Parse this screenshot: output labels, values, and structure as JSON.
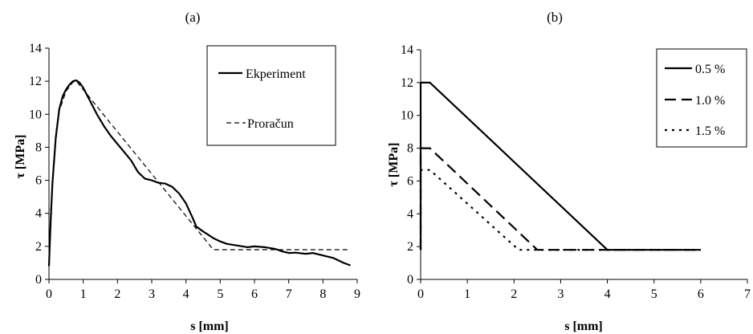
{
  "chart_data": [
    {
      "type": "line",
      "panel_label": "(a)",
      "xlabel": "s [mm]",
      "ylabel": "τ [MPa]",
      "xlim": [
        0,
        9
      ],
      "ylim": [
        0,
        14
      ],
      "xticks": [
        "0",
        "1",
        "2",
        "3",
        "4",
        "5",
        "6",
        "7",
        "8",
        "9"
      ],
      "yticks": [
        "0",
        "2",
        "4",
        "6",
        "8",
        "10",
        "12",
        "14"
      ],
      "grid": false,
      "legend_position": "top-right",
      "series": [
        {
          "name": "Ekperiment",
          "style": "solid",
          "points": [
            [
              0,
              0.8
            ],
            [
              0.05,
              3.5
            ],
            [
              0.1,
              5.8
            ],
            [
              0.2,
              8.6
            ],
            [
              0.3,
              10.3
            ],
            [
              0.4,
              11.1
            ],
            [
              0.5,
              11.5
            ],
            [
              0.6,
              11.8
            ],
            [
              0.7,
              12.0
            ],
            [
              0.8,
              12.05
            ],
            [
              0.9,
              11.9
            ],
            [
              1.0,
              11.6
            ],
            [
              1.2,
              10.8
            ],
            [
              1.4,
              10.0
            ],
            [
              1.6,
              9.3
            ],
            [
              1.8,
              8.7
            ],
            [
              2.0,
              8.2
            ],
            [
              2.2,
              7.7
            ],
            [
              2.4,
              7.2
            ],
            [
              2.6,
              6.5
            ],
            [
              2.8,
              6.1
            ],
            [
              3.0,
              6.0
            ],
            [
              3.2,
              5.85
            ],
            [
              3.4,
              5.8
            ],
            [
              3.6,
              5.6
            ],
            [
              3.8,
              5.2
            ],
            [
              4.0,
              4.6
            ],
            [
              4.2,
              3.7
            ],
            [
              4.3,
              3.2
            ],
            [
              4.5,
              2.9
            ],
            [
              4.8,
              2.5
            ],
            [
              5.0,
              2.3
            ],
            [
              5.2,
              2.15
            ],
            [
              5.5,
              2.05
            ],
            [
              5.8,
              1.95
            ],
            [
              6.0,
              2.0
            ],
            [
              6.3,
              1.95
            ],
            [
              6.6,
              1.85
            ],
            [
              6.8,
              1.7
            ],
            [
              7.0,
              1.6
            ],
            [
              7.2,
              1.62
            ],
            [
              7.5,
              1.55
            ],
            [
              7.7,
              1.6
            ],
            [
              8.0,
              1.45
            ],
            [
              8.3,
              1.3
            ],
            [
              8.6,
              1.0
            ],
            [
              8.8,
              0.85
            ]
          ]
        },
        {
          "name": "Proračun",
          "style": "dashed",
          "points": [
            [
              0,
              0.8
            ],
            [
              0.05,
              4.0
            ],
            [
              0.15,
              7.5
            ],
            [
              0.3,
              10.2
            ],
            [
              0.5,
              11.4
            ],
            [
              0.7,
              11.95
            ],
            [
              0.8,
              12.0
            ],
            [
              4.8,
              1.8
            ],
            [
              8.8,
              1.8
            ]
          ]
        }
      ]
    },
    {
      "type": "line",
      "panel_label": "(b)",
      "xlabel": "s [mm]",
      "ylabel": "τ [MPa]",
      "xlim": [
        0,
        7
      ],
      "ylim": [
        0,
        14
      ],
      "xticks": [
        "0",
        "1",
        "2",
        "3",
        "4",
        "5",
        "6",
        "7"
      ],
      "yticks": [
        "0",
        "2",
        "4",
        "6",
        "8",
        "10",
        "12",
        "14"
      ],
      "grid": false,
      "legend_position": "top-right",
      "series": [
        {
          "name": "0.5 %",
          "style": "solid",
          "points": [
            [
              0,
              1.8
            ],
            [
              0,
              12.0
            ],
            [
              0.2,
              12.0
            ],
            [
              4.0,
              1.8
            ],
            [
              6.0,
              1.8
            ]
          ]
        },
        {
          "name": "1.0 %",
          "style": "long-dash",
          "points": [
            [
              0,
              1.8
            ],
            [
              0,
              8.0
            ],
            [
              0.2,
              8.0
            ],
            [
              2.5,
              1.8
            ],
            [
              6.0,
              1.8
            ]
          ]
        },
        {
          "name": "1.5 %",
          "style": "dotted",
          "points": [
            [
              0,
              1.8
            ],
            [
              0,
              6.67
            ],
            [
              0.2,
              6.67
            ],
            [
              2.1,
              1.8
            ],
            [
              6.0,
              1.8
            ]
          ]
        }
      ]
    }
  ]
}
